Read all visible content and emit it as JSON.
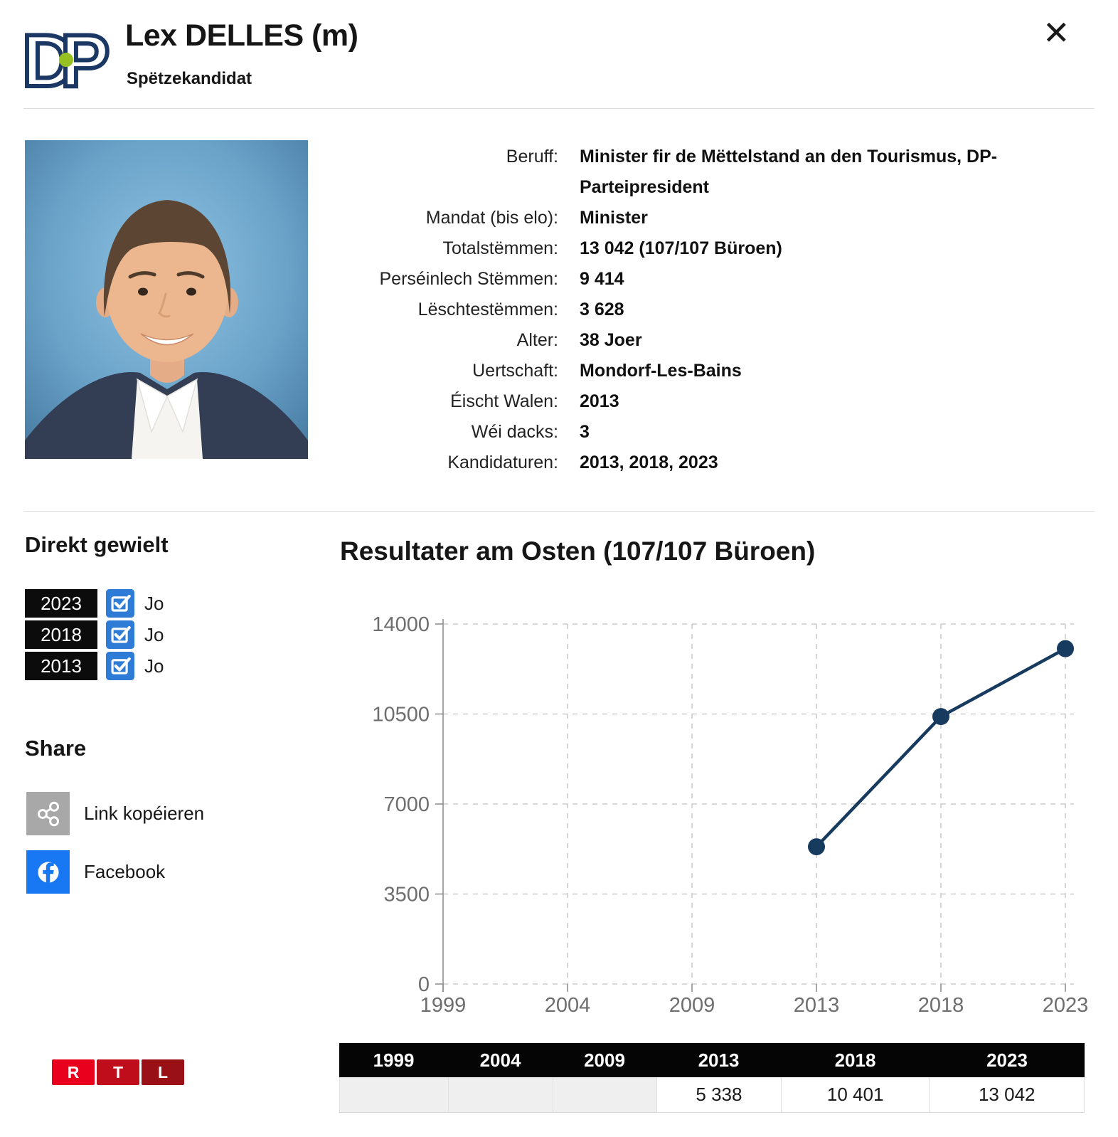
{
  "header": {
    "title": "Lex DELLES (m)",
    "subtitle": "Spëtzekandidat",
    "close_label": "✕",
    "party_logo_text": "DP",
    "party_navy": "#1b3764",
    "party_dot_green": "#96c121"
  },
  "info": {
    "rows": [
      {
        "label": "Beruff:",
        "value": "Minister fir de Mëttelstand an den Tourismus, DP-Parteipresident"
      },
      {
        "label": "Mandat (bis elo):",
        "value": "Minister"
      },
      {
        "label": "Totalstëmmen:",
        "value": "13 042 (107/107 Büroen)"
      },
      {
        "label": "Perséinlech Stëmmen:",
        "value": "9 414"
      },
      {
        "label": "Lëschtestëmmen:",
        "value": "3 628"
      },
      {
        "label": "Alter:",
        "value": "38 Joer"
      },
      {
        "label": "Uertschaft:",
        "value": "Mondorf-Les-Bains"
      },
      {
        "label": "Éischt Walen:",
        "value": "2013"
      },
      {
        "label": "Wéi dacks:",
        "value": "3"
      },
      {
        "label": "Kandidaturen:",
        "value": "2013, 2018, 2023"
      }
    ]
  },
  "direkt_gewielt": {
    "heading": "Direkt gewielt",
    "items": [
      {
        "year": "2023",
        "value": "Jo"
      },
      {
        "year": "2018",
        "value": "Jo"
      },
      {
        "year": "2013",
        "value": "Jo"
      }
    ],
    "check_blue": "#2e7cd6"
  },
  "share": {
    "heading": "Share",
    "items": [
      {
        "label": "Link kopéieren",
        "icon": "share-nodes-icon",
        "color": "#a8a8a8"
      },
      {
        "label": "Facebook",
        "icon": "facebook-icon",
        "color": "#1877f2"
      }
    ]
  },
  "chart_data": {
    "type": "line",
    "title": "Resultater am Osten (107/107 Büroen)",
    "categories": [
      "1999",
      "2004",
      "2009",
      "2013",
      "2018",
      "2023"
    ],
    "values": [
      null,
      null,
      null,
      5338,
      10401,
      13042
    ],
    "ylim": [
      0,
      14000
    ],
    "yticks": [
      0,
      3500,
      7000,
      10500,
      14000
    ],
    "grid": true,
    "legend_position": "none",
    "line_color": "#173a5f"
  },
  "results_table": {
    "headers": [
      "1999",
      "2004",
      "2009",
      "2013",
      "2018",
      "2023"
    ],
    "values": [
      "",
      "",
      "",
      "5 338",
      "10 401",
      "13 042"
    ]
  },
  "footer": {
    "rtl_letters": [
      "R",
      "T",
      "L"
    ],
    "rtl_colors": [
      "#e8001d",
      "#c00d1c",
      "#991017"
    ]
  }
}
